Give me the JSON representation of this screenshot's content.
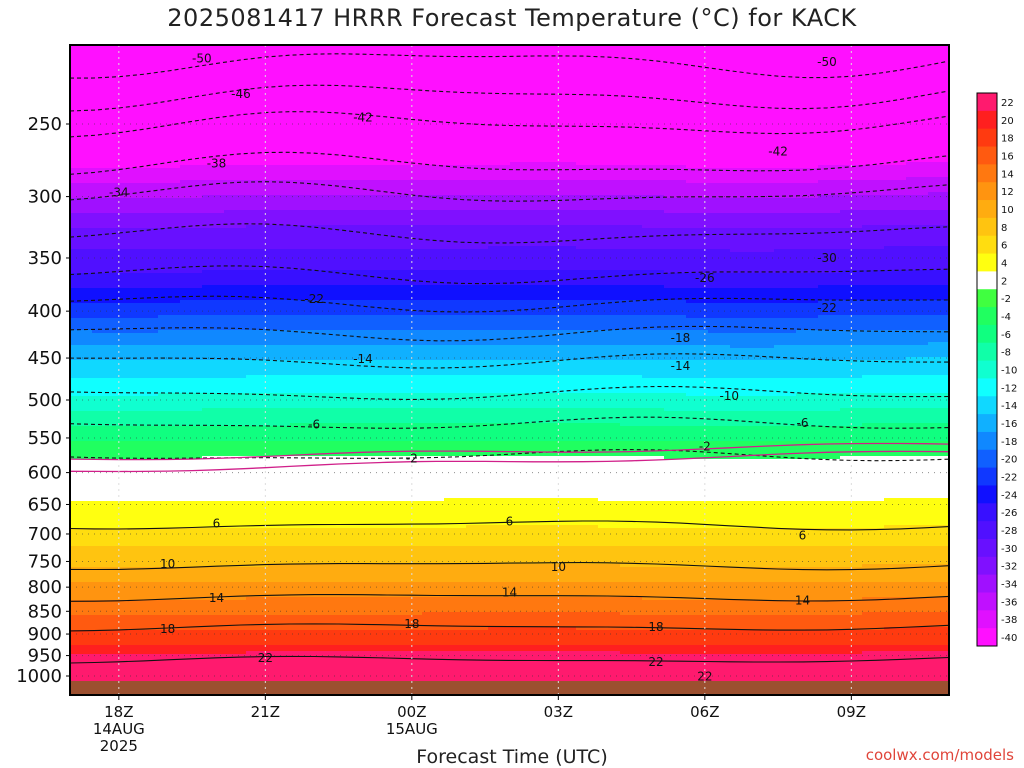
{
  "header": {
    "title": "2025081417 HRRR Forecast Temperature (°C) for KACK"
  },
  "footer": {
    "xlabel": "Forecast Time (UTC)",
    "credit": "coolwx.com/models"
  },
  "chart_data": {
    "type": "heatmap",
    "title": "2025081417 HRRR Forecast Temperature (°C) for KACK",
    "xlabel": "Forecast Time (UTC)",
    "ylabel": "",
    "x_ticks": [
      {
        "hour": 1,
        "lines": [
          "18Z",
          "14AUG",
          "2025"
        ]
      },
      {
        "hour": 4,
        "lines": [
          "21Z"
        ]
      },
      {
        "hour": 7,
        "lines": [
          "00Z",
          "15AUG"
        ]
      },
      {
        "hour": 10,
        "lines": [
          "03Z"
        ]
      },
      {
        "hour": 13,
        "lines": [
          "06Z"
        ]
      },
      {
        "hour": 16,
        "lines": [
          "09Z"
        ]
      }
    ],
    "x_range": [
      0,
      18
    ],
    "y_ticks": [
      250,
      300,
      350,
      400,
      450,
      500,
      550,
      600,
      650,
      700,
      750,
      800,
      850,
      900,
      950,
      1000
    ],
    "y_range_hPa": [
      200,
      1025
    ],
    "y_scale": "log",
    "grid": true,
    "colorbar": {
      "levels": [
        22,
        20,
        18,
        16,
        14,
        12,
        10,
        8,
        6,
        4,
        2,
        -2,
        -4,
        -6,
        -8,
        -10,
        -12,
        -14,
        -16,
        -18,
        -20,
        -22,
        -24,
        -26,
        -28,
        -30,
        -32,
        -34,
        -36,
        -38,
        -40
      ],
      "colors": [
        "#ff1a6e",
        "#ff1f1f",
        "#ff3a10",
        "#ff5a10",
        "#ff7810",
        "#ff9410",
        "#ffac10",
        "#ffc410",
        "#ffdd10",
        "#ffff10",
        "#ffffff",
        "#40ff40",
        "#20ff60",
        "#10ff80",
        "#10ffa8",
        "#10ffd0",
        "#10ffff",
        "#10d8ff",
        "#10b0ff",
        "#1088ff",
        "#1060ff",
        "#1038ff",
        "#1010ff",
        "#3810ff",
        "#5010ff",
        "#6810ff",
        "#8010ff",
        "#a010ff",
        "#c010ff",
        "#e010ff",
        "#ff10ff"
      ]
    },
    "contours": [
      {
        "level": -50,
        "labels": [
          {
            "hour": 2.7,
            "p": 212
          },
          {
            "hour": 15.5,
            "p": 214
          }
        ]
      },
      {
        "level": -46,
        "labels": [
          {
            "hour": 3.5,
            "p": 232
          }
        ]
      },
      {
        "level": -42,
        "labels": [
          {
            "hour": 6,
            "p": 246
          },
          {
            "hour": 14.5,
            "p": 268
          }
        ]
      },
      {
        "level": -38,
        "labels": [
          {
            "hour": 3,
            "p": 276
          }
        ]
      },
      {
        "level": -34,
        "labels": [
          {
            "hour": 1,
            "p": 297
          }
        ]
      },
      {
        "level": -30,
        "labels": [
          {
            "hour": 15.5,
            "p": 350
          }
        ]
      },
      {
        "level": -26,
        "labels": [
          {
            "hour": 13,
            "p": 368
          }
        ]
      },
      {
        "level": -22,
        "labels": [
          {
            "hour": 5,
            "p": 388
          },
          {
            "hour": 15.5,
            "p": 397
          }
        ]
      },
      {
        "level": -18,
        "labels": [
          {
            "hour": 12.5,
            "p": 428
          }
        ]
      },
      {
        "level": -14,
        "labels": [
          {
            "hour": 6,
            "p": 451
          },
          {
            "hour": 12.5,
            "p": 459
          }
        ]
      },
      {
        "level": -10,
        "labels": [
          {
            "hour": 13.5,
            "p": 495
          }
        ]
      },
      {
        "level": -6,
        "labels": [
          {
            "hour": 5,
            "p": 532
          },
          {
            "hour": 15,
            "p": 530
          }
        ]
      },
      {
        "level": -2,
        "labels": [
          {
            "hour": 7,
            "p": 579
          },
          {
            "hour": 13,
            "p": 562
          }
        ]
      },
      {
        "level": 6,
        "labels": [
          {
            "hour": 3,
            "p": 682
          },
          {
            "hour": 9,
            "p": 678
          },
          {
            "hour": 15,
            "p": 703
          }
        ]
      },
      {
        "level": 10,
        "labels": [
          {
            "hour": 2,
            "p": 755
          },
          {
            "hour": 10,
            "p": 761
          }
        ]
      },
      {
        "level": 14,
        "labels": [
          {
            "hour": 3,
            "p": 822
          },
          {
            "hour": 9,
            "p": 811
          },
          {
            "hour": 15,
            "p": 827
          }
        ]
      },
      {
        "level": 18,
        "labels": [
          {
            "hour": 2,
            "p": 889
          },
          {
            "hour": 7,
            "p": 878
          },
          {
            "hour": 12,
            "p": 884
          }
        ]
      },
      {
        "level": 22,
        "labels": [
          {
            "hour": 4,
            "p": 956
          },
          {
            "hour": 12,
            "p": 965
          },
          {
            "hour": 13,
            "p": 1001
          }
        ]
      }
    ]
  }
}
